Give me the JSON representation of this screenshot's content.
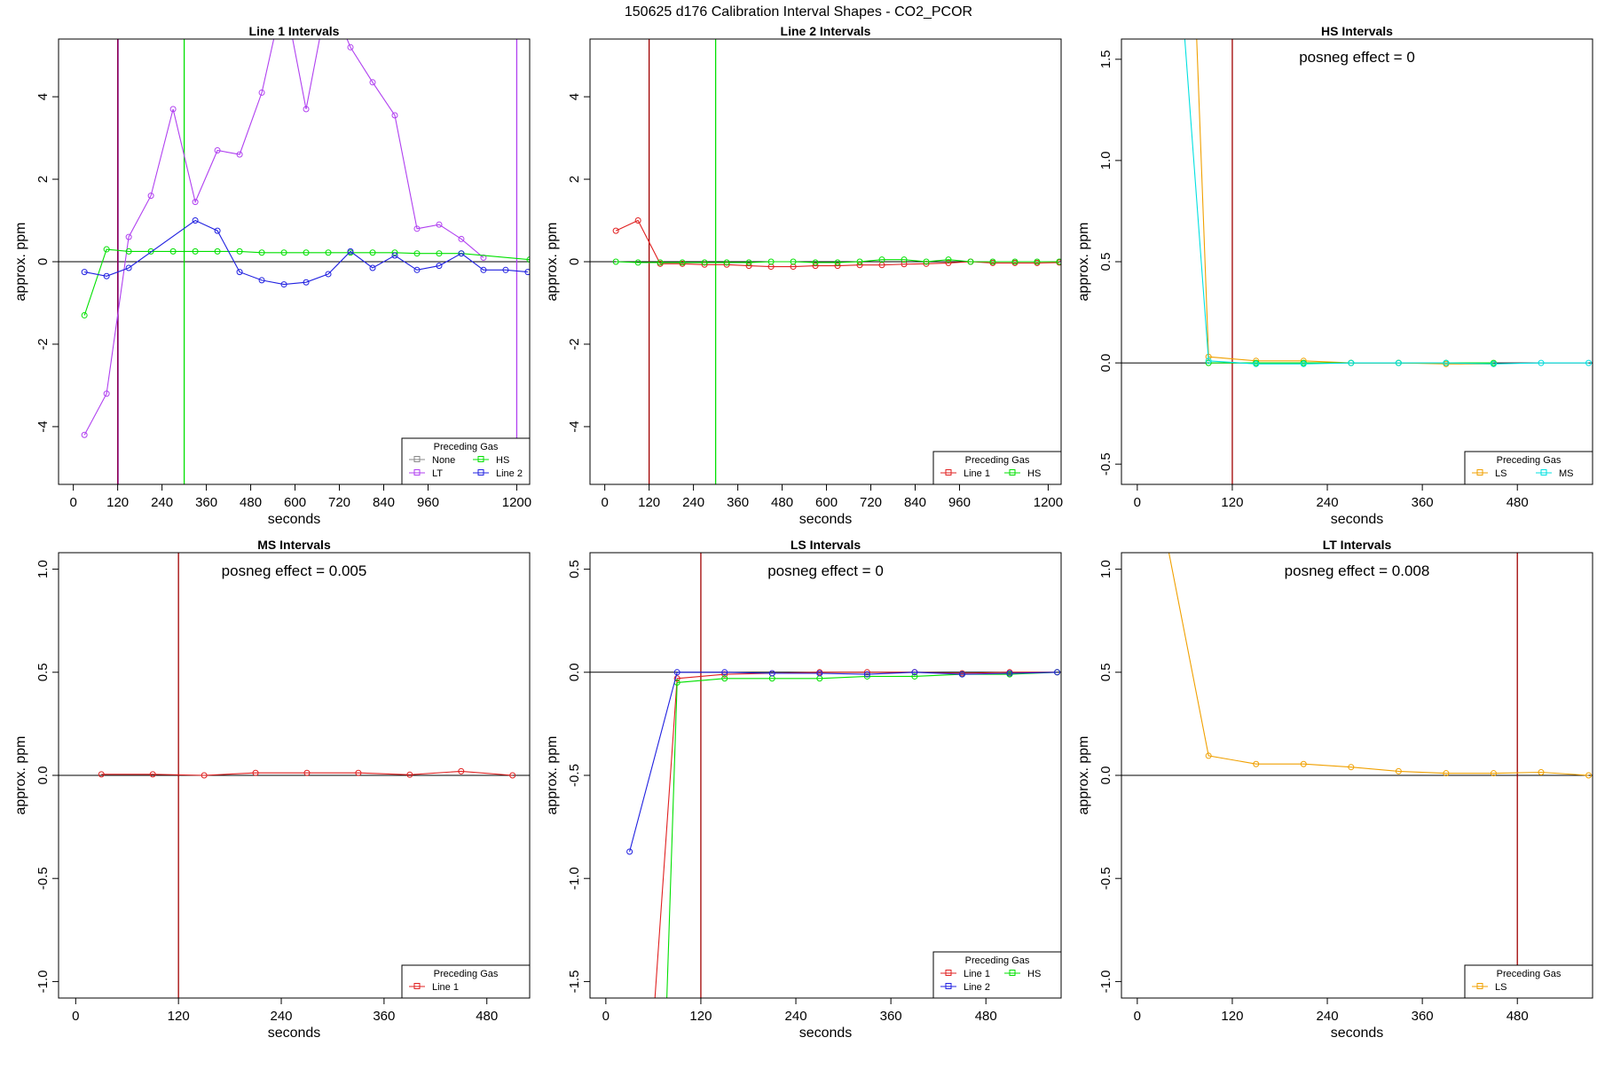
{
  "title": "150625  d176   Calibration Interval Shapes - CO2_PCOR",
  "colors": {
    "None": "#888888",
    "HS": "#00e000",
    "LT": "#b040f0",
    "Line 2": "#2020e0",
    "Line 1": "#e02020",
    "LS": "#f0a000",
    "MS": "#00e0e0",
    "zero_line": "#000000",
    "red_vline": "#a00000",
    "purple_vline": "#800080"
  },
  "chart_data": [
    {
      "type": "line",
      "title": "Line 1 Intervals",
      "xlabel": "seconds",
      "ylabel": "approx. ppm",
      "xlim": [
        -40,
        1235
      ],
      "ylim": [
        -5.4,
        5.4
      ],
      "xticks": [
        0,
        120,
        240,
        360,
        480,
        600,
        720,
        840,
        960,
        1200
      ],
      "yticks": [
        -4,
        -2,
        0,
        2,
        4
      ],
      "vlines": [
        {
          "x": 120,
          "color": "#a00000"
        },
        {
          "x": 121,
          "color": "#800080"
        },
        {
          "x": 300,
          "color": "#00e000"
        },
        {
          "x": 1200,
          "color": "#b040f0"
        }
      ],
      "legend": {
        "title": "Preceding Gas",
        "position": "bottom-right",
        "columns": 2,
        "entries": [
          "None",
          "HS",
          "LT",
          "Line 2"
        ]
      },
      "series": [
        {
          "name": "LT",
          "color": "#b040f0",
          "x": [
            30,
            90,
            150,
            210,
            270,
            330,
            390,
            450,
            510,
            570,
            630,
            690,
            750,
            810,
            870,
            930,
            990,
            1050,
            1110
          ],
          "y": [
            -4.2,
            -3.2,
            0.6,
            1.6,
            3.7,
            1.45,
            2.7,
            2.6,
            4.1,
            6.5,
            3.7,
            6.5,
            5.2,
            4.35,
            3.55,
            0.8,
            0.9,
            0.55,
            0.1
          ]
        },
        {
          "name": "HS",
          "color": "#00e000",
          "x": [
            30,
            90,
            150,
            210,
            270,
            330,
            390,
            450,
            510,
            570,
            630,
            690,
            750,
            810,
            870,
            930,
            990,
            1050,
            1235
          ],
          "y": [
            -1.3,
            0.3,
            0.25,
            0.25,
            0.25,
            0.25,
            0.25,
            0.25,
            0.22,
            0.22,
            0.22,
            0.22,
            0.22,
            0.22,
            0.22,
            0.2,
            0.2,
            0.2,
            0.05
          ]
        },
        {
          "name": "Line 2",
          "color": "#2020e0",
          "x": [
            30,
            90,
            150,
            330,
            390,
            450,
            510,
            570,
            630,
            690,
            750,
            810,
            870,
            930,
            990,
            1050,
            1110,
            1170,
            1230
          ],
          "y": [
            -0.25,
            -0.35,
            -0.15,
            1.0,
            0.75,
            -0.25,
            -0.45,
            -0.55,
            -0.5,
            -0.3,
            0.25,
            -0.15,
            0.15,
            -0.2,
            -0.1,
            0.2,
            -0.2,
            -0.2,
            -0.25
          ]
        }
      ]
    },
    {
      "type": "line",
      "title": "Line 2 Intervals",
      "xlabel": "seconds",
      "ylabel": "approx. ppm",
      "xlim": [
        -40,
        1235
      ],
      "ylim": [
        -5.4,
        5.4
      ],
      "xticks": [
        0,
        120,
        240,
        360,
        480,
        600,
        720,
        840,
        960,
        1200
      ],
      "yticks": [
        -4,
        -2,
        0,
        2,
        4
      ],
      "vlines": [
        {
          "x": 120,
          "color": "#a00000"
        },
        {
          "x": 300,
          "color": "#00e000"
        }
      ],
      "legend": {
        "title": "Preceding Gas",
        "position": "bottom-right",
        "columns": 2,
        "entries": [
          "Line 1",
          "HS"
        ]
      },
      "series": [
        {
          "name": "Line 1",
          "color": "#e02020",
          "x": [
            30,
            90,
            150,
            210,
            270,
            330,
            390,
            450,
            510,
            570,
            630,
            690,
            750,
            810,
            870,
            930,
            990,
            1050,
            1110,
            1170,
            1230
          ],
          "y": [
            0.75,
            1.0,
            -0.05,
            -0.05,
            -0.07,
            -0.07,
            -0.1,
            -0.12,
            -0.12,
            -0.1,
            -0.1,
            -0.08,
            -0.08,
            -0.06,
            -0.05,
            -0.03,
            0.0,
            -0.03,
            -0.03,
            -0.03,
            -0.02
          ]
        },
        {
          "name": "HS",
          "color": "#00e000",
          "x": [
            30,
            90,
            150,
            210,
            270,
            330,
            390,
            450,
            510,
            570,
            630,
            690,
            750,
            810,
            870,
            930,
            990,
            1050,
            1110,
            1170,
            1230
          ],
          "y": [
            0.0,
            -0.02,
            -0.02,
            -0.02,
            -0.02,
            -0.02,
            -0.02,
            0.0,
            0.0,
            -0.02,
            -0.02,
            0.0,
            0.05,
            0.05,
            0.0,
            0.05,
            0.0,
            0.0,
            0.0,
            0.0,
            0.0
          ]
        }
      ]
    },
    {
      "type": "line",
      "title": "HS Intervals",
      "xlabel": "seconds",
      "ylabel": "approx. ppm",
      "annotation": "posneg effect = 0",
      "xlim": [
        -20,
        575
      ],
      "ylim": [
        -0.6,
        1.6
      ],
      "xticks": [
        0,
        120,
        240,
        360,
        480
      ],
      "yticks": [
        -0.5,
        0.0,
        0.5,
        1.0,
        1.5
      ],
      "vlines": [
        {
          "x": 120,
          "color": "#a00000"
        }
      ],
      "legend": {
        "title": "Preceding Gas",
        "position": "bottom-right",
        "columns": 2,
        "entries": [
          "LS",
          "MS"
        ]
      },
      "series": [
        {
          "name": "LS",
          "color": "#f0a000",
          "x": [
            75,
            90,
            150,
            210,
            270,
            330,
            390,
            450
          ],
          "y": [
            1.6,
            0.03,
            0.01,
            0.01,
            0.0,
            0.0,
            -0.005,
            -0.005
          ]
        },
        {
          "name": "MS",
          "color": "#00e000",
          "x": [
            90,
            150,
            210,
            270,
            330,
            390,
            450
          ],
          "y": [
            0.0,
            0.0,
            0.0,
            0.0,
            0.0,
            0.0,
            0.0
          ]
        },
        {
          "name": "MS",
          "color": "#00e0e0",
          "x": [
            60,
            90,
            150,
            210,
            270,
            330,
            390,
            450,
            510,
            570
          ],
          "y": [
            1.6,
            0.01,
            -0.005,
            -0.005,
            0.0,
            0.0,
            0.0,
            -0.005,
            0.0,
            0.0
          ]
        }
      ]
    },
    {
      "type": "line",
      "title": "MS Intervals",
      "xlabel": "seconds",
      "ylabel": "approx. ppm",
      "annotation": "posneg effect = 0.005",
      "xlim": [
        -20,
        530
      ],
      "ylim": [
        -1.08,
        1.08
      ],
      "xticks": [
        0,
        120,
        240,
        360,
        480
      ],
      "yticks": [
        -1.0,
        -0.5,
        0.0,
        0.5,
        1.0
      ],
      "vlines": [
        {
          "x": 120,
          "color": "#a00000"
        }
      ],
      "legend": {
        "title": "Preceding Gas",
        "position": "bottom-right",
        "columns": 1,
        "entries": [
          "Line 1"
        ]
      },
      "series": [
        {
          "name": "Line 1",
          "color": "#e02020",
          "x": [
            30,
            90,
            150,
            210,
            270,
            330,
            390,
            450,
            510
          ],
          "y": [
            0.005,
            0.005,
            0.0,
            0.012,
            0.012,
            0.012,
            0.003,
            0.02,
            0.0
          ]
        }
      ]
    },
    {
      "type": "line",
      "title": "LS Intervals",
      "xlabel": "seconds",
      "ylabel": "approx. ppm",
      "annotation": "posneg effect = 0",
      "xlim": [
        -20,
        575
      ],
      "ylim": [
        -1.58,
        0.58
      ],
      "xticks": [
        0,
        120,
        240,
        360,
        480
      ],
      "yticks": [
        -1.5,
        -1.0,
        -0.5,
        0.0,
        0.5
      ],
      "vlines": [
        {
          "x": 120,
          "color": "#a00000"
        }
      ],
      "legend": {
        "title": "Preceding Gas",
        "position": "bottom-right",
        "columns": 2,
        "entries": [
          "Line 1",
          "HS",
          "Line 2"
        ]
      },
      "series": [
        {
          "name": "Line 1",
          "color": "#e02020",
          "x": [
            62,
            90,
            150,
            210,
            270,
            330,
            390,
            450,
            510,
            570
          ],
          "y": [
            -1.58,
            -0.03,
            -0.01,
            -0.005,
            0.0,
            0.0,
            0.0,
            -0.005,
            0.0,
            0.0
          ]
        },
        {
          "name": "HS",
          "color": "#00e000",
          "x": [
            77,
            90,
            150,
            210,
            270,
            330,
            390,
            450,
            510,
            570
          ],
          "y": [
            -1.58,
            -0.05,
            -0.03,
            -0.03,
            -0.03,
            -0.02,
            -0.02,
            -0.01,
            -0.01,
            0.0
          ]
        },
        {
          "name": "Line 2",
          "color": "#2020e0",
          "x": [
            30,
            90,
            150,
            210,
            270,
            330,
            390,
            450,
            510,
            570
          ],
          "y": [
            -0.87,
            0.0,
            0.0,
            -0.005,
            -0.005,
            -0.01,
            0.0,
            -0.01,
            -0.005,
            0.0
          ]
        }
      ]
    },
    {
      "type": "line",
      "title": "LT Intervals",
      "xlabel": "seconds",
      "ylabel": "approx. ppm",
      "annotation": "posneg effect = 0.008",
      "xlim": [
        -20,
        575
      ],
      "ylim": [
        -1.08,
        1.08
      ],
      "xticks": [
        0,
        120,
        240,
        360,
        480
      ],
      "yticks": [
        -1.0,
        -0.5,
        0.0,
        0.5,
        1.0
      ],
      "vlines": [
        {
          "x": 480,
          "color": "#a00000"
        }
      ],
      "legend": {
        "title": "Preceding Gas",
        "position": "bottom-right",
        "columns": 1,
        "entries": [
          "LS"
        ]
      },
      "series": [
        {
          "name": "LS",
          "color": "#f0a000",
          "x": [
            40,
            90,
            150,
            210,
            270,
            330,
            390,
            450,
            510,
            570
          ],
          "y": [
            1.08,
            0.095,
            0.055,
            0.055,
            0.04,
            0.02,
            0.01,
            0.01,
            0.015,
            0.0
          ]
        }
      ]
    }
  ]
}
